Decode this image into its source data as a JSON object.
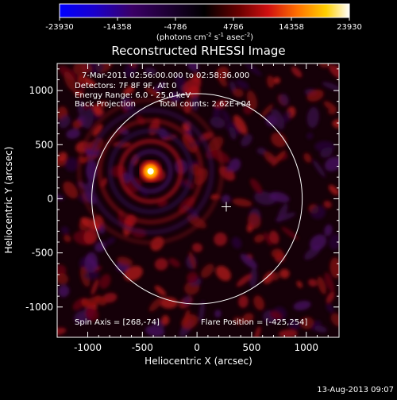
{
  "chart_data": {
    "type": "heatmap",
    "title": "Reconstructed RHESSI Image",
    "xlabel": "Heliocentric X (arcsec)",
    "ylabel": "Heliocentric Y (arcsec)",
    "xlim": [
      -1280,
      1300
    ],
    "ylim": [
      -1280,
      1250
    ],
    "x_ticks": [
      -1000,
      -500,
      0,
      500,
      1000
    ],
    "y_ticks": [
      -1000,
      -500,
      0,
      500,
      1000
    ],
    "colorbar": {
      "ticks": [
        "-23930",
        "-14358",
        "-4786",
        "4786",
        "14358",
        "23930"
      ],
      "unit_main": "(photons cm",
      "unit_sup1": "-2",
      "unit_mid": " s",
      "unit_sup2": "-1",
      "unit_end": " asec",
      "unit_sup3": "-2",
      "unit_close": ")",
      "range": [
        -23930,
        23930
      ],
      "colors": [
        "#0000ff",
        "#1a00cc",
        "#3a0066",
        "#000000",
        "#6a0000",
        "#d01010",
        "#ff7000",
        "#ffd000",
        "#ffffff"
      ]
    },
    "annotations": {
      "time_range": "7-Mar-2011 02:56:00.000 to 02:58:36.000",
      "detectors": "Detectors: 7F 8F 9F, Att 0",
      "energy": "Energy Range: 6.0 - 25.0 keV",
      "method": "Back Projection",
      "counts": "Total counts: 2.62E+04",
      "spin_axis": "Spin Axis = [268,-74]",
      "flare_position": "Flare Position = [-425,254]"
    },
    "flare_peak": {
      "x": -425,
      "y": 254
    },
    "spin_axis": {
      "x": 268,
      "y": -74
    },
    "solar_limb_radius": 963,
    "grid": false
  },
  "footer": {
    "date": "13-Aug-2013 09:07"
  }
}
